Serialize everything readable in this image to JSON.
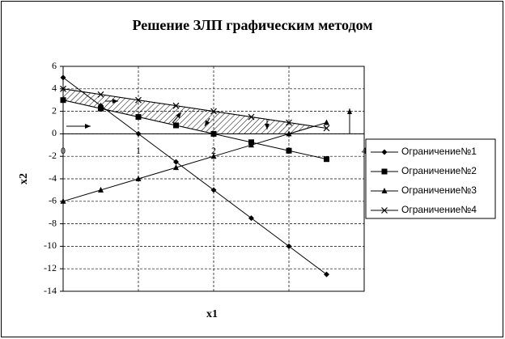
{
  "chart_data": {
    "type": "line",
    "title": "Решение ЗЛП графическим методом",
    "x_label": "x1",
    "y_label": "x2",
    "x": [
      0,
      0.5,
      1,
      1.5,
      2,
      2.5,
      3,
      3.5
    ],
    "series": [
      {
        "name": "Ограничение№1",
        "color": "#000000",
        "marker": "diamond",
        "values": [
          5,
          2.5,
          0,
          -2.5,
          -5,
          -7.5,
          -10,
          -12.5
        ]
      },
      {
        "name": "Ограничение№2",
        "color": "#000000",
        "marker": "square",
        "values": [
          3,
          2.25,
          1.5,
          0.75,
          0,
          -0.75,
          -1.5,
          -2.25
        ]
      },
      {
        "name": "Ограничение№3",
        "color": "#000000",
        "marker": "triangle",
        "values": [
          -6,
          -5,
          -4,
          -3,
          -2,
          -1,
          0,
          1
        ]
      },
      {
        "name": "Ограничение№4",
        "color": "#000000",
        "marker": "x",
        "values": [
          4,
          3.5,
          3,
          2.5,
          2,
          1.5,
          1,
          0.5
        ]
      }
    ],
    "xlim": [
      0,
      4
    ],
    "xticks": [
      0,
      1,
      2,
      3,
      4
    ],
    "ylim": [
      -14,
      6
    ],
    "yticks": [
      -14,
      -12,
      -10,
      -8,
      -6,
      -4,
      -2,
      0,
      2,
      4,
      6
    ],
    "grid": true,
    "legend": "right"
  }
}
